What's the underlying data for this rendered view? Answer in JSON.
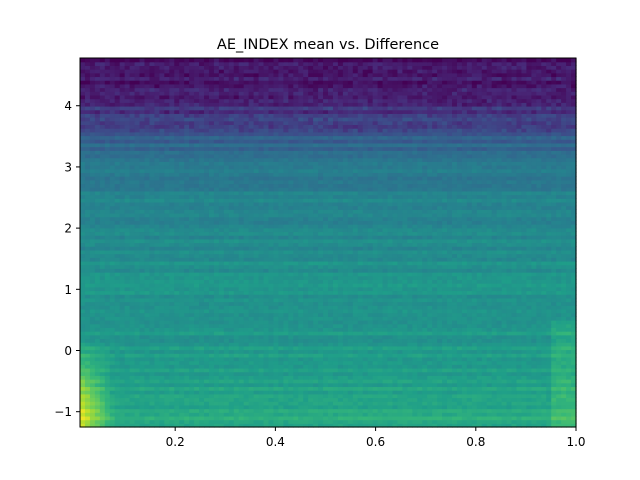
{
  "chart_data": {
    "type": "heatmap",
    "title": "AE_INDEX mean vs. Difference",
    "xlabel": "",
    "ylabel": "",
    "xlim": [
      0.01,
      1.0
    ],
    "ylim": [
      -1.25,
      4.78
    ],
    "x_ticks": [
      0.2,
      0.4,
      0.6,
      0.8,
      1.0
    ],
    "x_tick_labels": [
      "0.2",
      "0.4",
      "0.6",
      "0.8",
      "1.0"
    ],
    "y_ticks": [
      -1,
      0,
      1,
      2,
      3,
      4
    ],
    "y_tick_labels": [
      "−1",
      "0",
      "1",
      "2",
      "3",
      "4"
    ],
    "colormap": "viridis",
    "grid": false,
    "legend": "none",
    "value_range": [
      0,
      1
    ],
    "value_profile_note": "",
    "rows_y_range": [
      -1.25,
      4.78
    ],
    "cols_x_range": [
      0.01,
      1.0
    ],
    "n_rows": 100,
    "n_cols": 100,
    "row_level": [
      {
        "y": -1.25,
        "v": 0.62
      },
      {
        "y": -0.8,
        "v": 0.58
      },
      {
        "y": -0.3,
        "v": 0.55
      },
      {
        "y": 0.2,
        "v": 0.53
      },
      {
        "y": 0.8,
        "v": 0.52
      },
      {
        "y": 1.5,
        "v": 0.5
      },
      {
        "y": 2.2,
        "v": 0.46
      },
      {
        "y": 2.9,
        "v": 0.42
      },
      {
        "y": 3.4,
        "v": 0.32
      },
      {
        "y": 3.8,
        "v": 0.22
      },
      {
        "y": 4.2,
        "v": 0.12
      },
      {
        "y": 4.78,
        "v": 0.08
      }
    ],
    "hot_corner": {
      "x_max": 0.08,
      "y_max": 0.3,
      "boost": 0.4
    }
  }
}
